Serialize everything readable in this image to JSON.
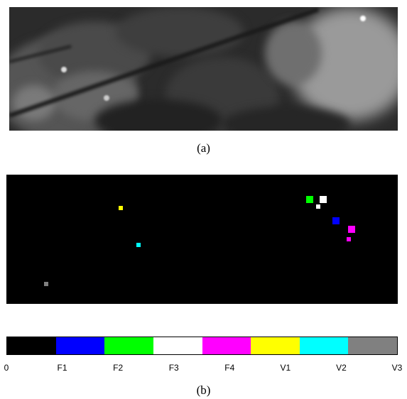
{
  "captions": {
    "a": "(a)",
    "b": "(b)"
  },
  "target_map": {
    "targets": [
      {
        "class": "V1",
        "color": "#ffff00"
      },
      {
        "class": "V2",
        "color": "#00ffff"
      },
      {
        "class": "V3",
        "color": "#808080"
      },
      {
        "class": "F2",
        "color": "#00ff00"
      },
      {
        "class": "F3",
        "color": "#ffffff"
      },
      {
        "class": "F3",
        "color": "#ffffff"
      },
      {
        "class": "F1",
        "color": "#0000ff"
      },
      {
        "class": "F4",
        "color": "#ff00ff"
      },
      {
        "class": "F4",
        "color": "#ff00ff"
      }
    ]
  },
  "colorbar": {
    "segments": [
      {
        "color": "#000000"
      },
      {
        "color": "#0000ff"
      },
      {
        "color": "#00ff00"
      },
      {
        "color": "#ffffff"
      },
      {
        "color": "#ff00ff"
      },
      {
        "color": "#ffff00"
      },
      {
        "color": "#00ffff"
      },
      {
        "color": "#808080"
      }
    ],
    "ticks": [
      "0",
      "F1",
      "F2",
      "F3",
      "F4",
      "V1",
      "V2",
      "V3"
    ]
  }
}
